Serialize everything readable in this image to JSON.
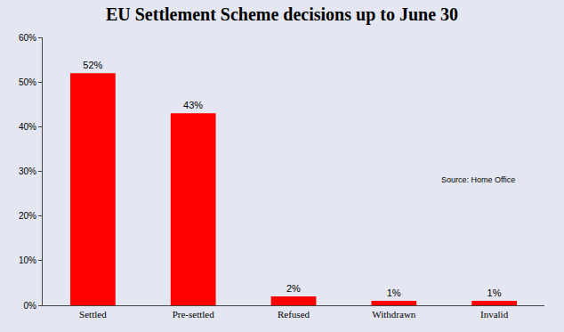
{
  "chart_data": {
    "type": "bar",
    "title": "EU Settlement Scheme decisions up to June 30",
    "categories": [
      "Settled",
      "Pre-settled",
      "Refused",
      "Withdrawn",
      "Invalid"
    ],
    "values": [
      52,
      43,
      2,
      1,
      1
    ],
    "value_labels": [
      "52%",
      "43%",
      "2%",
      "1%",
      "1%"
    ],
    "data_labels": true,
    "color": "#ff0000",
    "ylim": [
      0,
      60
    ],
    "yticks": [
      {
        "value": 0,
        "label": "0%"
      },
      {
        "value": 10,
        "label": "10%"
      },
      {
        "value": 20,
        "label": "20%"
      },
      {
        "value": 30,
        "label": "30%"
      },
      {
        "value": 40,
        "label": "40%"
      },
      {
        "value": 50,
        "label": "50%"
      },
      {
        "value": 60,
        "label": "60%"
      }
    ],
    "grid": false,
    "annotations": [
      "Source: Home Office"
    ]
  }
}
